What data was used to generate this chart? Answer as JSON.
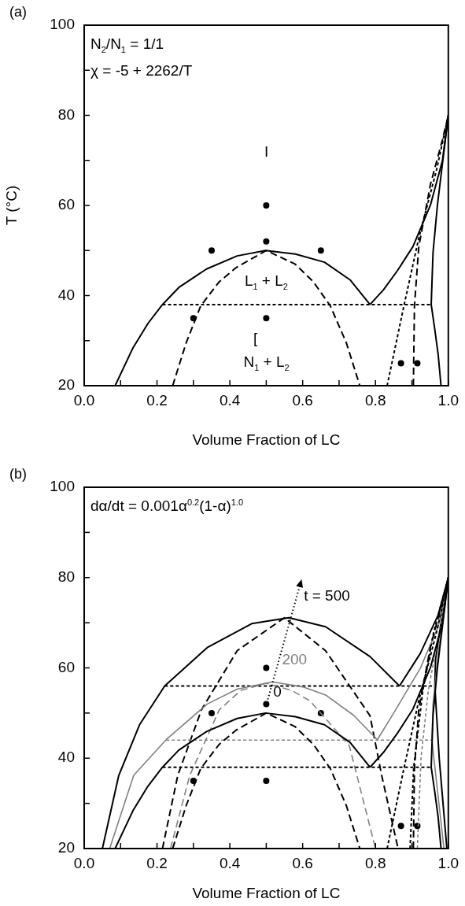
{
  "chart_data": [
    {
      "type": "line",
      "xlabel": "Volume Fraction of LC",
      "ylabel": "T (°C)",
      "xlim": [
        0,
        1
      ],
      "ylim": [
        20,
        100
      ],
      "grid": false,
      "xticks": [
        {
          "value": 0,
          "label": "0.0"
        },
        {
          "value": 0.1,
          "label": null
        },
        {
          "value": 0.2,
          "label": "0.2"
        },
        {
          "value": 0.3,
          "label": null
        },
        {
          "value": 0.4,
          "label": "0.4"
        },
        {
          "value": 0.5,
          "label": null
        },
        {
          "value": 0.6,
          "label": "0.6"
        },
        {
          "value": 0.7,
          "label": null
        },
        {
          "value": 0.8,
          "label": "0.8"
        },
        {
          "value": 0.9,
          "label": null
        },
        {
          "value": 1,
          "label": "1.0"
        }
      ],
      "yticks": [
        20,
        {
          "value": 30,
          "label": null
        },
        40,
        {
          "value": 50,
          "label": null
        },
        60,
        {
          "value": 70,
          "label": null
        },
        80,
        {
          "value": 90,
          "label": null
        },
        100
      ],
      "annotations": [
        "(a)",
        "N$_{2}$/N$_{1}$ = 1/1",
        "χ = -5 + 2262/T",
        "I",
        "L$_{1}$ + L$_{2}$",
        "[",
        "N$_{1}$ + L$_{2}$"
      ],
      "series": [
        {
          "color": "#000000",
          "line_style": "solid",
          "x": [
            0.085,
            0.134,
            0.175,
            0.215,
            0.26,
            0.336,
            0.42,
            0.498,
            0.58,
            0.66,
            0.73,
            0.785
          ],
          "values": [
            20,
            28.4,
            33.8,
            38,
            41.8,
            45.9,
            48.8,
            50,
            49.2,
            47.4,
            43.5,
            38
          ]
        },
        {
          "color": "#000000",
          "line_style": "solid",
          "x": [
            0.785,
            0.822,
            0.86,
            0.903,
            0.951,
            0.984,
            1.0
          ],
          "values": [
            38,
            41.3,
            45.5,
            50.9,
            60.1,
            70,
            80
          ]
        },
        {
          "color": "#000000",
          "line_style": "solid",
          "x": [
            1.0,
            0.985,
            0.97,
            0.958,
            0.953,
            0.962,
            0.972,
            0.98
          ],
          "values": [
            80,
            70,
            60,
            49.5,
            38,
            33,
            27,
            20
          ]
        },
        {
          "color": "#000000",
          "line_style": "dashed",
          "x": [
            0.243,
            0.28,
            0.32,
            0.37,
            0.417,
            0.5,
            0.579,
            0.63,
            0.676,
            0.72,
            0.757
          ],
          "values": [
            20,
            29.5,
            37.7,
            43,
            46.2,
            50,
            47,
            43,
            37.7,
            29.5,
            20
          ]
        },
        {
          "color": "#000000",
          "line_style": "dotted",
          "x": [
            0.215,
            0.953
          ],
          "values": [
            38,
            38
          ]
        },
        {
          "color": "#000000",
          "line_style": "dotted",
          "x": [
            0.832,
            0.878,
            0.919,
            0.968,
            1.0
          ],
          "values": [
            20,
            37.7,
            52.8,
            68,
            80
          ]
        },
        {
          "color": "#000000",
          "line_style": "dashed",
          "x": [
            0.904,
            0.907,
            0.919,
            0.951,
            0.984,
            1.0
          ],
          "values": [
            20,
            37.7,
            50.9,
            64.7,
            74.6,
            80
          ]
        },
        {
          "type": "scatter",
          "marker": "circle",
          "color": "#000000",
          "x": [
            0.5,
            0.5,
            0.35,
            0.65,
            0.3,
            0.5,
            0.87,
            0.915
          ],
          "values": [
            60,
            52,
            50,
            50,
            35,
            35,
            25,
            25
          ]
        }
      ]
    },
    {
      "type": "line",
      "xlabel": "Volume Fraction of LC",
      "xlim": [
        0,
        1
      ],
      "ylim": [
        20,
        100
      ],
      "grid": false,
      "xticks": [
        {
          "value": 0,
          "label": "0.0"
        },
        {
          "value": 0.1,
          "label": null
        },
        {
          "value": 0.2,
          "label": "0.2"
        },
        {
          "value": 0.3,
          "label": null
        },
        {
          "value": 0.4,
          "label": "0.4"
        },
        {
          "value": 0.5,
          "label": null
        },
        {
          "value": 0.6,
          "label": "0.6"
        },
        {
          "value": 0.7,
          "label": null
        },
        {
          "value": 0.8,
          "label": "0.8"
        },
        {
          "value": 0.9,
          "label": null
        },
        {
          "value": 1,
          "label": "1.0"
        }
      ],
      "yticks": [
        20,
        {
          "value": 30,
          "label": null
        },
        40,
        {
          "value": 50,
          "label": null
        },
        60,
        {
          "value": 70,
          "label": null
        },
        80,
        {
          "value": 90,
          "label": null
        },
        100
      ],
      "annotations": [
        "(b)",
        "dα/dt = 0.001α$^{0.2}$(1-α)$^{1.0}$",
        "t = 500",
        "200",
        "0"
      ],
      "series": [
        {
          "color": "#000000",
          "line_style": "solid",
          "x": [
            0.085,
            0.134,
            0.175,
            0.215,
            0.26,
            0.336,
            0.42,
            0.498,
            0.58,
            0.66,
            0.73,
            0.785
          ],
          "values": [
            20,
            28.4,
            33.8,
            38,
            41.8,
            45.9,
            48.8,
            50,
            49.2,
            47.4,
            43.5,
            38
          ]
        },
        {
          "color": "#000000",
          "line_style": "solid",
          "x": [
            0.785,
            0.822,
            0.86,
            0.903,
            0.951,
            0.984,
            1.0
          ],
          "values": [
            38,
            41.3,
            45.5,
            50.9,
            60.1,
            70,
            80
          ]
        },
        {
          "color": "#000000",
          "line_style": "solid",
          "x": [
            1.0,
            0.985,
            0.97,
            0.958,
            0.953,
            0.962,
            0.972,
            0.98
          ],
          "values": [
            80,
            70,
            60,
            49.5,
            38,
            33,
            27,
            20
          ]
        },
        {
          "color": "#000000",
          "line_style": "dashed",
          "x": [
            0.243,
            0.28,
            0.32,
            0.37,
            0.417,
            0.5,
            0.579,
            0.63,
            0.676,
            0.72,
            0.757
          ],
          "values": [
            20,
            29.5,
            37.7,
            43,
            46.2,
            50,
            47,
            43,
            37.7,
            29.5,
            20
          ]
        },
        {
          "color": "#000000",
          "line_style": "dotted",
          "x": [
            0.215,
            0.953
          ],
          "values": [
            38,
            38
          ]
        },
        {
          "color": "#000000",
          "line_style": "dotted",
          "x": [
            0.832,
            0.878,
            0.919,
            0.968,
            1.0
          ],
          "values": [
            20,
            37.7,
            52.8,
            68,
            80
          ]
        },
        {
          "color": "#000000",
          "line_style": "dashed",
          "x": [
            0.904,
            0.907,
            0.919,
            0.951,
            0.984,
            1.0
          ],
          "values": [
            20,
            37.7,
            50.9,
            64.7,
            74.6,
            80
          ]
        },
        {
          "color": "#808080",
          "line_style": "solid",
          "x": [
            0.07,
            0.136,
            0.225,
            0.338,
            0.42,
            0.517,
            0.6,
            0.663,
            0.74,
            0.805
          ],
          "values": [
            20,
            36.2,
            44.1,
            52,
            55.3,
            56.9,
            55.8,
            54,
            49.5,
            44.1
          ]
        },
        {
          "color": "#808080",
          "line_style": "solid",
          "x": [
            0.805,
            0.85,
            0.923,
            0.972,
            1.0
          ],
          "values": [
            44.1,
            50,
            59.9,
            69.1,
            80
          ]
        },
        {
          "color": "#808080",
          "line_style": "solid",
          "x": [
            1.0,
            0.975,
            0.958,
            0.955,
            0.97,
            0.988
          ],
          "values": [
            80,
            65,
            52,
            44,
            33,
            20
          ]
        },
        {
          "color": "#808080",
          "line_style": "dashed",
          "x": [
            0.237,
            0.29,
            0.371,
            0.43,
            0.5,
            0.57,
            0.62,
            0.728,
            0.8
          ],
          "values": [
            20,
            36.2,
            50.7,
            55,
            56.6,
            55,
            52.7,
            42.8,
            20
          ]
        },
        {
          "color": "#808080",
          "line_style": "dotted",
          "x": [
            0.225,
            0.955
          ],
          "values": [
            44,
            44
          ]
        },
        {
          "color": "#808080",
          "line_style": "dotted",
          "x": [
            0.915,
            0.925,
            0.945,
            0.975,
            1.0
          ],
          "values": [
            20,
            40,
            55,
            68,
            80
          ]
        },
        {
          "color": "#000000",
          "line_style": "solid",
          "x": [
            0.05,
            0.095,
            0.152,
            0.221,
            0.338,
            0.46,
            0.562,
            0.663,
            0.785,
            0.866
          ],
          "values": [
            20,
            36.2,
            47.4,
            56,
            64.5,
            69.8,
            71.1,
            69.1,
            62.5,
            56
          ]
        },
        {
          "color": "#000000",
          "line_style": "solid",
          "x": [
            0.866,
            0.923,
            0.972,
            1.0
          ],
          "values": [
            56,
            63.2,
            71.7,
            80
          ]
        },
        {
          "color": "#000000",
          "line_style": "solid",
          "x": [
            1.0,
            0.98,
            0.965,
            0.963,
            0.975,
            0.996
          ],
          "values": [
            80,
            70,
            62,
            56,
            40,
            20
          ]
        },
        {
          "color": "#000000",
          "line_style": "dashed",
          "x": [
            0.215,
            0.257,
            0.322,
            0.42,
            0.55,
            0.663,
            0.785,
            0.817,
            0.862
          ],
          "values": [
            20,
            36.2,
            50.7,
            63.8,
            71.1,
            63.8,
            49.4,
            36.2,
            20
          ]
        },
        {
          "color": "#000000",
          "line_style": "dotted",
          "x": [
            0.221,
            0.955
          ],
          "values": [
            56,
            56
          ]
        },
        {
          "color": "#000000",
          "line_style": "dotted",
          "x": [
            0.895,
            0.905,
            0.93,
            0.96,
            1.0
          ],
          "values": [
            20,
            38,
            55,
            68,
            80
          ]
        },
        {
          "type": "scatter",
          "marker": "circle",
          "color": "#000000",
          "x": [
            0.5,
            0.5,
            0.35,
            0.65,
            0.3,
            0.5,
            0.87,
            0.915
          ],
          "values": [
            60,
            52,
            50,
            50,
            35,
            35,
            25,
            25
          ]
        }
      ]
    }
  ]
}
